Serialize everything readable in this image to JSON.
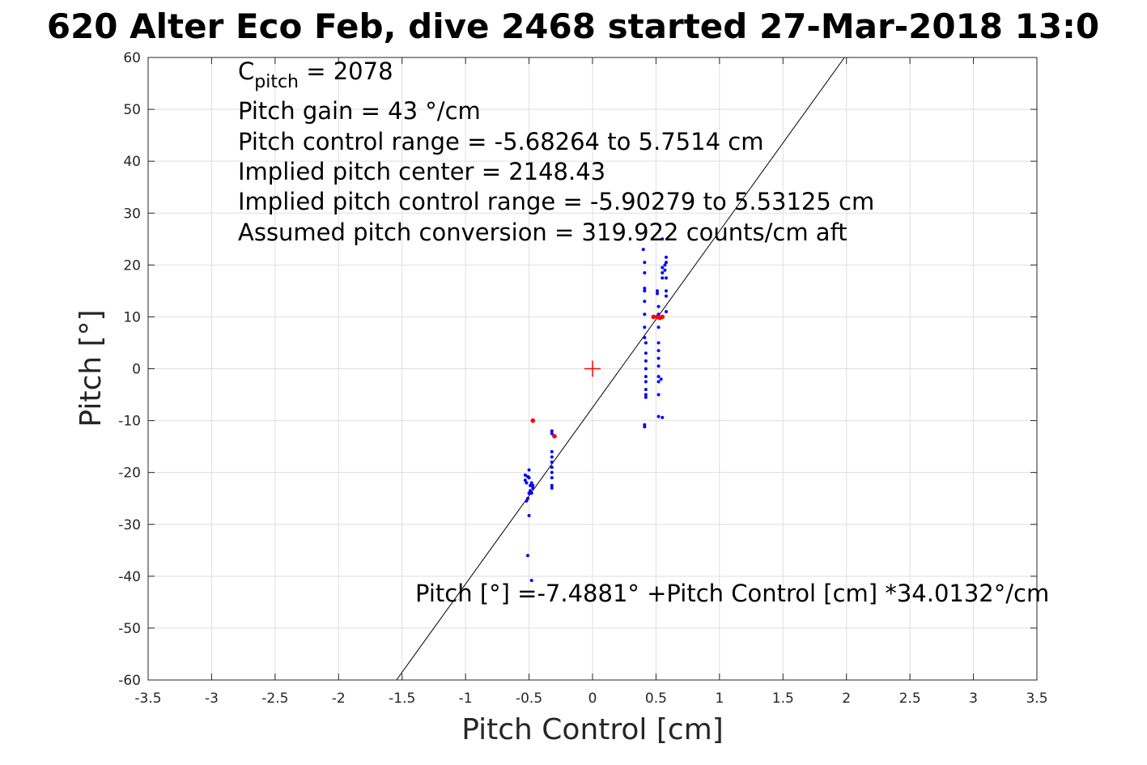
{
  "chart_data": {
    "type": "scatter",
    "title": "620 Alter Eco Feb, dive 2468 started 27-Mar-2018 13:0",
    "xlabel": "Pitch Control [cm]",
    "ylabel": "Pitch [°]",
    "xlim": [
      -3.5,
      3.5
    ],
    "ylim": [
      -60,
      60
    ],
    "xticks": [
      -3.5,
      -3,
      -2.5,
      -2,
      -1.5,
      -1,
      -0.5,
      0,
      0.5,
      1,
      1.5,
      2,
      2.5,
      3,
      3.5
    ],
    "xtick_labels": [
      "-3.5",
      "-3",
      "-2.5",
      "-2",
      "-1.5",
      "-1",
      "-0.5",
      "0",
      "0.5",
      "1",
      "1.5",
      "2",
      "2.5",
      "3",
      "3.5"
    ],
    "yticks": [
      -60,
      -50,
      -40,
      -30,
      -20,
      -10,
      0,
      10,
      20,
      30,
      40,
      50,
      60
    ],
    "ytick_labels": [
      "-60",
      "-50",
      "-40",
      "-30",
      "-20",
      "-10",
      "0",
      "10",
      "20",
      "30",
      "40",
      "50",
      "60"
    ],
    "grid": true,
    "colors": {
      "data": "#0000ff",
      "outliers": "#ff0000",
      "fit": "#000000",
      "center": "#ff0000"
    },
    "series": [
      {
        "role": "data",
        "color": "#0000ff",
        "points": [
          [
            -0.53,
            -20.5
          ],
          [
            -0.53,
            -21.5
          ],
          [
            -0.52,
            -22.0
          ],
          [
            -0.51,
            -20.8
          ],
          [
            -0.5,
            -19.5
          ],
          [
            -0.5,
            -21.0
          ],
          [
            -0.49,
            -22.5
          ],
          [
            -0.49,
            -23.5
          ],
          [
            -0.48,
            -22.0
          ],
          [
            -0.48,
            -24.0
          ],
          [
            -0.47,
            -23.0
          ],
          [
            -0.47,
            -22.5
          ],
          [
            -0.5,
            -24.0
          ],
          [
            -0.51,
            -25.0
          ],
          [
            -0.52,
            -25.5
          ],
          [
            -0.5,
            -28.3
          ],
          [
            -0.51,
            -36.0
          ],
          [
            -0.48,
            -40.8
          ],
          [
            -0.32,
            -12.0
          ],
          [
            -0.32,
            -12.5
          ],
          [
            -0.32,
            -16.0
          ],
          [
            -0.32,
            -17.0
          ],
          [
            -0.32,
            -18.0
          ],
          [
            -0.32,
            -19.0
          ],
          [
            -0.32,
            -20.0
          ],
          [
            -0.32,
            -21.0
          ],
          [
            -0.32,
            -22.5
          ],
          [
            -0.32,
            -23.0
          ],
          [
            0.4,
            23.0
          ],
          [
            0.41,
            20.5
          ],
          [
            0.41,
            18.5
          ],
          [
            0.41,
            15.5
          ],
          [
            0.41,
            15.0
          ],
          [
            0.41,
            13.0
          ],
          [
            0.41,
            10.5
          ],
          [
            0.41,
            8.0
          ],
          [
            0.41,
            6.0
          ],
          [
            0.42,
            5.0
          ],
          [
            0.42,
            3.0
          ],
          [
            0.42,
            1.5
          ],
          [
            0.42,
            0.0
          ],
          [
            0.42,
            -1.5
          ],
          [
            0.42,
            -2.5
          ],
          [
            0.42,
            -4.0
          ],
          [
            0.42,
            -5.0
          ],
          [
            0.42,
            -5.5
          ],
          [
            0.41,
            -10.8
          ],
          [
            0.41,
            -11.2
          ],
          [
            0.51,
            15.0
          ],
          [
            0.51,
            14.5
          ],
          [
            0.52,
            12.0
          ],
          [
            0.52,
            10.5
          ],
          [
            0.52,
            8.0
          ],
          [
            0.52,
            5.0
          ],
          [
            0.52,
            3.5
          ],
          [
            0.52,
            2.0
          ],
          [
            0.52,
            0.5
          ],
          [
            0.52,
            -1.5
          ],
          [
            0.52,
            -2.5
          ],
          [
            0.52,
            -5.0
          ],
          [
            0.52,
            -9.2
          ],
          [
            0.55,
            -9.4
          ],
          [
            0.54,
            -2.0
          ],
          [
            0.55,
            19.5
          ],
          [
            0.55,
            18.5
          ],
          [
            0.55,
            17.5
          ],
          [
            0.55,
            25.0
          ],
          [
            0.57,
            20.0
          ],
          [
            0.57,
            19.0
          ],
          [
            0.58,
            21.5
          ],
          [
            0.58,
            20.5
          ],
          [
            0.58,
            17.5
          ],
          [
            0.58,
            15.0
          ],
          [
            0.58,
            14.0
          ],
          [
            0.58,
            11.0
          ]
        ]
      },
      {
        "role": "outliers",
        "color": "#ff0000",
        "points": [
          [
            -0.47,
            -10.0
          ],
          [
            -0.3,
            -13.0
          ],
          [
            0.48,
            10.0
          ],
          [
            0.51,
            10.0
          ],
          [
            0.53,
            9.8
          ],
          [
            0.55,
            10.0
          ]
        ]
      }
    ],
    "fit": {
      "intercept": -7.4881,
      "slope": 34.0132
    },
    "center_marker": [
      0,
      0
    ]
  },
  "annotations": {
    "c_pitch_main": "C",
    "c_pitch_sub": "pitch",
    "c_pitch_value": " = 2078",
    "line2": "Pitch gain = 43 °/cm",
    "line3": "Pitch control range = -5.68264 to 5.7514 cm",
    "line4": "Implied pitch center = 2148.43",
    "line5": "Implied pitch control range = -5.90279 to 5.53125 cm",
    "line6": "Assumed pitch conversion = 319.922 counts/cm aft",
    "fit_label": "Pitch [°] =-7.4881° +Pitch Control [cm] *34.0132°/cm"
  }
}
